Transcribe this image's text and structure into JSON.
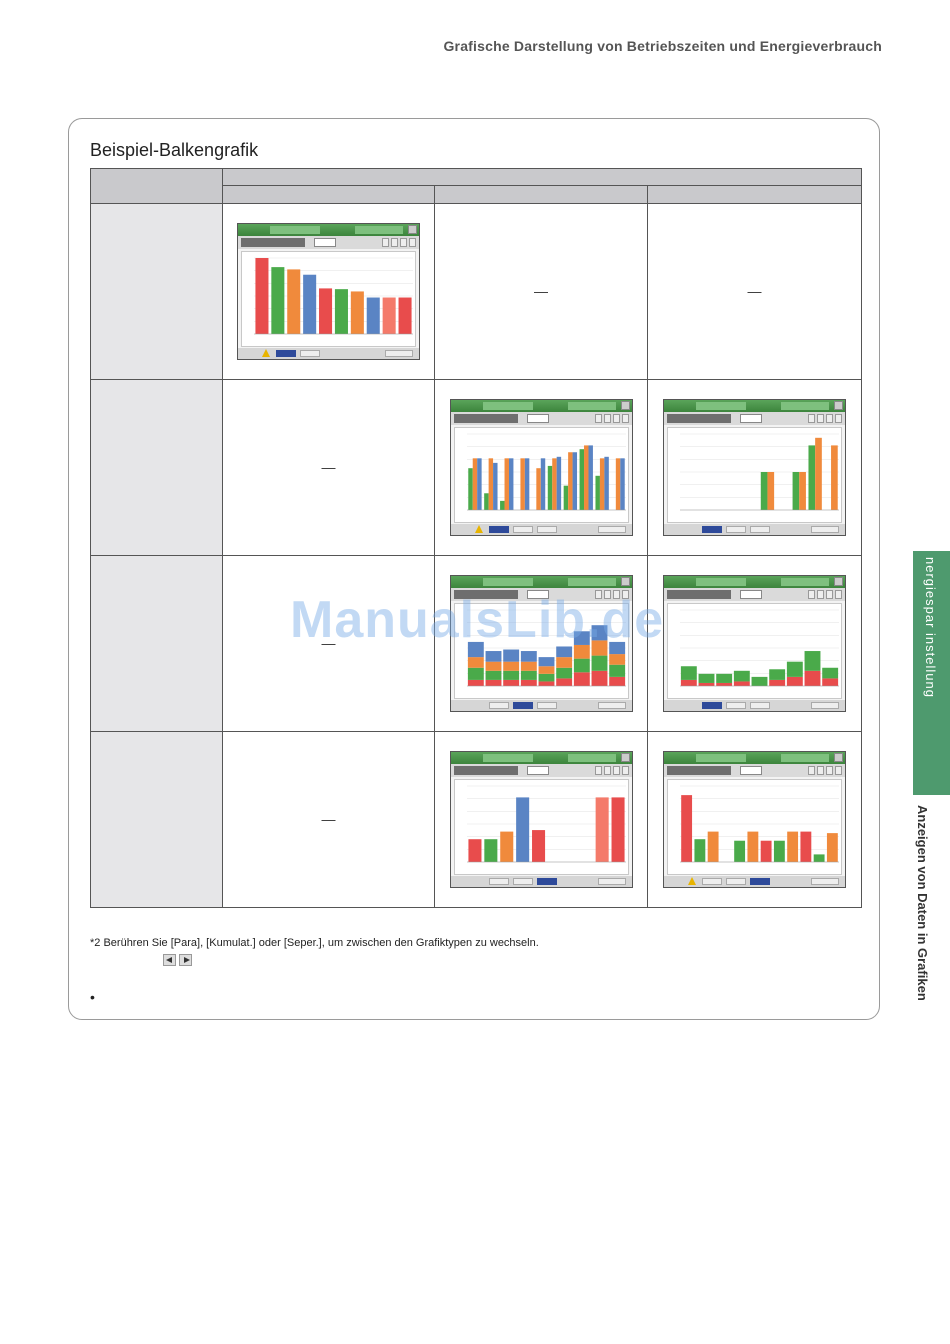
{
  "header": {
    "title": "Grafische Darstellung von Betriebszeiten und Energieverbrauch"
  },
  "section": {
    "title": "Beispiel-Balkengrafik"
  },
  "table": {
    "empty_mark": "—"
  },
  "watermark": "ManualsLib.de",
  "footnote": "*2 Berühren Sie [Para], [Kumulat.] oder [Seper.], um zwischen den Grafiktypen zu wechseln.",
  "bullet": "•",
  "side_tab": {
    "label": "nergiespar  instellung"
  },
  "side_text": "Anzeigen von Daten in Grafiken",
  "colors": {
    "red": "#e84c4c",
    "green": "#4aaa4a",
    "orange": "#f08a3c",
    "blue": "#5a84c4",
    "salmon": "#f47a6a"
  },
  "chart_data": [
    {
      "type": "bar",
      "values": [
        100,
        88,
        85,
        78,
        60,
        59,
        56,
        48,
        48,
        48
      ],
      "colors": [
        "red",
        "green",
        "orange",
        "blue",
        "red",
        "green",
        "orange",
        "blue",
        "salmon",
        "red"
      ]
    },
    {
      "type": "bar",
      "series": [
        {
          "name": "",
          "values": [
            55,
            22,
            12,
            0,
            0,
            58,
            32,
            80,
            45,
            0
          ]
        },
        {
          "name": "",
          "values": [
            68,
            68,
            68,
            68,
            55,
            68,
            76,
            85,
            68,
            68
          ]
        },
        {
          "name": "",
          "values": [
            68,
            62,
            68,
            68,
            68,
            70,
            76,
            85,
            70,
            68
          ]
        }
      ]
    },
    {
      "type": "bar",
      "series": [
        {
          "name": "",
          "values": [
            0,
            0,
            0,
            0,
            0,
            50,
            0,
            50,
            85,
            0
          ]
        },
        {
          "name": "",
          "values": [
            0,
            0,
            0,
            0,
            0,
            50,
            0,
            50,
            95,
            85
          ]
        }
      ]
    },
    {
      "type": "bar",
      "stacked": true,
      "series": [
        {
          "name": "",
          "values": [
            8,
            8,
            8,
            8,
            6,
            10,
            18,
            20,
            12
          ]
        },
        {
          "name": "",
          "values": [
            16,
            12,
            12,
            12,
            10,
            14,
            18,
            20,
            16
          ]
        },
        {
          "name": "",
          "values": [
            14,
            12,
            12,
            12,
            10,
            14,
            18,
            20,
            14
          ]
        },
        {
          "name": "",
          "values": [
            20,
            14,
            16,
            14,
            12,
            14,
            18,
            20,
            16
          ]
        }
      ]
    },
    {
      "type": "bar",
      "stacked": true,
      "series": [
        {
          "name": "",
          "values": [
            8,
            4,
            4,
            6,
            0,
            8,
            12,
            20,
            10
          ]
        },
        {
          "name": "",
          "values": [
            18,
            12,
            12,
            14,
            12,
            14,
            20,
            26,
            14
          ]
        }
      ]
    },
    {
      "type": "bar",
      "values": [
        30,
        30,
        40,
        85,
        42,
        0,
        0,
        0,
        85,
        85
      ],
      "colors": [
        "red",
        "green",
        "orange",
        "blue",
        "red",
        "green",
        "orange",
        "blue",
        "salmon",
        "red"
      ]
    },
    {
      "type": "bar",
      "values": [
        88,
        30,
        40,
        0,
        28,
        40,
        28,
        28,
        40,
        40,
        10,
        38
      ],
      "colors": [
        "red",
        "green",
        "orange",
        "blue",
        "green",
        "orange",
        "red",
        "green",
        "orange",
        "red",
        "green",
        "orange"
      ]
    }
  ]
}
